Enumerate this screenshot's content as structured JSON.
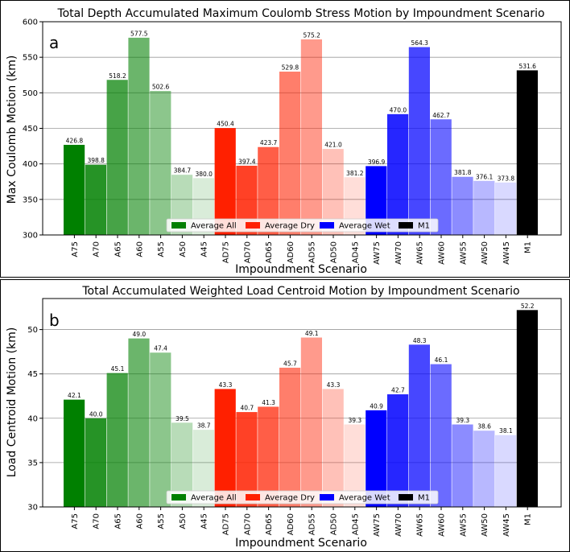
{
  "colors": {
    "average_all": "#008000",
    "average_dry": "#ff2000",
    "average_wet": "#0000ff",
    "m1": "#000000"
  },
  "chart_data": [
    {
      "panel_label": "a",
      "type": "bar",
      "title": "Total Depth Accumulated Maximum Coulomb Stress Motion by Impoundment Scenario",
      "xlabel": "Impoundment Scenario",
      "ylabel": "Max Coulomb Motion (km)",
      "ylim": [
        300,
        600
      ],
      "yticks": [
        300,
        350,
        400,
        450,
        500,
        550,
        600
      ],
      "grid": true,
      "legend_position": "bottom-center",
      "categories": [
        "A75",
        "A70",
        "A65",
        "A60",
        "A55",
        "A50",
        "A45",
        "AD75",
        "AD70",
        "AD65",
        "AD60",
        "AD55",
        "AD50",
        "AD45",
        "AW75",
        "AW70",
        "AW65",
        "AW60",
        "AW55",
        "AW50",
        "AW45",
        "M1"
      ],
      "values": [
        426.8,
        398.8,
        518.2,
        577.5,
        502.6,
        384.7,
        380.0,
        450.4,
        397.4,
        423.7,
        529.8,
        575.2,
        421.0,
        381.2,
        396.9,
        470.0,
        564.3,
        462.7,
        381.8,
        376.1,
        373.8,
        531.6
      ],
      "value_labels": [
        "426.8",
        "398.8",
        "518.2",
        "577.5",
        "502.6",
        "384.7",
        "380.0",
        "450.4",
        "397.4",
        "423.7",
        "529.8",
        "575.2",
        "421.0",
        "381.2",
        "396.9",
        "470.0",
        "564.3",
        "462.7",
        "381.8",
        "376.1",
        "373.8",
        "531.6"
      ],
      "legend": [
        "Average All",
        "Average Dry",
        "Average Wet",
        "M1"
      ]
    },
    {
      "panel_label": "b",
      "type": "bar",
      "title": "Total Accumulated Weighted Load Centroid Motion by Impoundment Scenario",
      "xlabel": "Impoundment Scenario",
      "ylabel": "Load Centroid Motion (km)",
      "ylim": [
        30,
        53.5
      ],
      "yticks": [
        30,
        35,
        40,
        45,
        50
      ],
      "grid": true,
      "legend_position": "bottom-center",
      "categories": [
        "A75",
        "A70",
        "A65",
        "A60",
        "A55",
        "A50",
        "A45",
        "AD75",
        "AD70",
        "AD65",
        "AD60",
        "AD55",
        "AD50",
        "AD45",
        "AW75",
        "AW70",
        "AW65",
        "AW60",
        "AW55",
        "AW50",
        "AW45",
        "M1"
      ],
      "values": [
        42.1,
        40.0,
        45.1,
        49.0,
        47.4,
        39.5,
        38.7,
        43.3,
        40.7,
        41.3,
        45.7,
        49.1,
        43.3,
        39.3,
        40.9,
        42.7,
        48.3,
        46.1,
        39.3,
        38.6,
        38.1,
        52.2
      ],
      "value_labels": [
        "42.1",
        "40.0",
        "45.1",
        "49.0",
        "47.4",
        "39.5",
        "38.7",
        "43.3",
        "40.7",
        "41.3",
        "45.7",
        "49.1",
        "43.3",
        "39.3",
        "40.9",
        "42.7",
        "48.3",
        "46.1",
        "39.3",
        "38.6",
        "38.1",
        "52.2"
      ],
      "legend": [
        "Average All",
        "Average Dry",
        "Average Wet",
        "M1"
      ]
    }
  ]
}
